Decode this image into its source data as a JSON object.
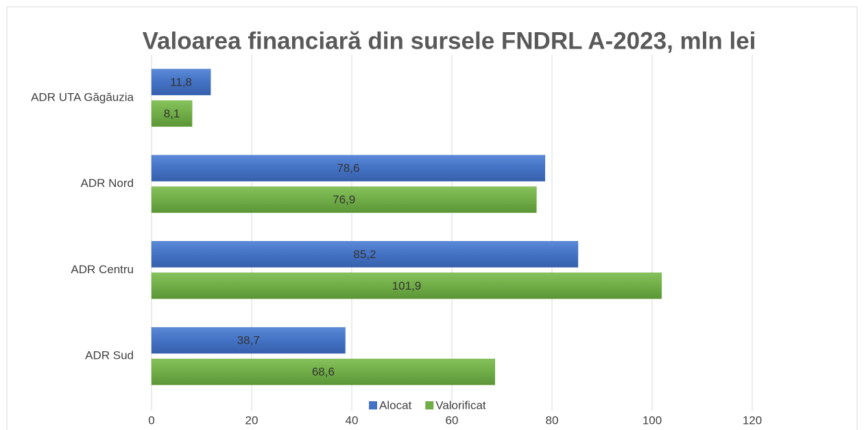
{
  "chart_data": {
    "type": "hbar",
    "title": "Valoarea financiară din sursele FNDRL A-2023, mln lei",
    "categories": [
      "ADR UTA Găgăuzia",
      "ADR Nord",
      "ADR Centru",
      "ADR Sud"
    ],
    "series": [
      {
        "name": "Alocat",
        "color": "#4472c4",
        "values": [
          11.8,
          78.6,
          85.2,
          38.7
        ],
        "value_labels": [
          "11,8",
          "78,6",
          "85,2",
          "38,7"
        ]
      },
      {
        "name": "Valorificat",
        "color": "#70ad47",
        "values": [
          8.1,
          76.9,
          101.9,
          68.6
        ],
        "value_labels": [
          "8,1",
          "76,9",
          "101,9",
          "68,6"
        ]
      }
    ],
    "xlim": [
      0,
      120
    ],
    "xticks": [
      0,
      20,
      40,
      60,
      80,
      100,
      120
    ],
    "grid": true,
    "legend": "bottom"
  }
}
